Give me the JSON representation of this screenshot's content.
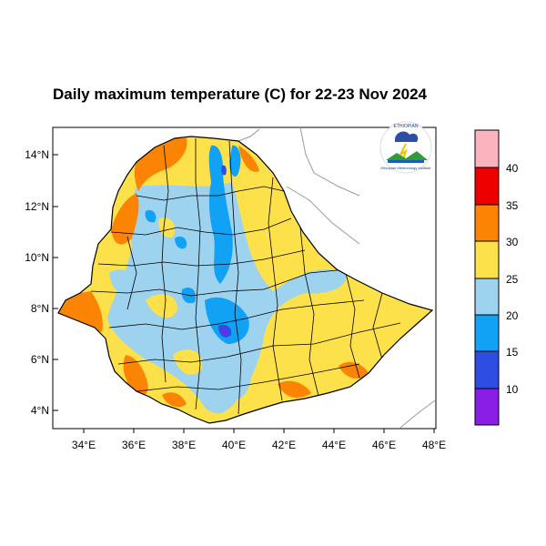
{
  "title": "Daily maximum temperature (C) for 22-23 Nov 2024",
  "map": {
    "lat_ticks": [
      "14°N",
      "12°N",
      "10°N",
      "8°N",
      "6°N",
      "4°N"
    ],
    "lon_ticks": [
      "34°E",
      "36°E",
      "38°E",
      "40°E",
      "42°E",
      "44°E",
      "46°E",
      "48°E"
    ],
    "extent": {
      "lon": [
        33,
        48.2
      ],
      "lat": [
        3.2,
        15.0
      ]
    },
    "region": "Ethiopia"
  },
  "colorbar": {
    "labels": [
      "40",
      "35",
      "30",
      "25",
      "20",
      "15",
      "10"
    ],
    "bins": [
      {
        "range": "<10",
        "color": "#8a1ee6"
      },
      {
        "range": "10-15",
        "color": "#2d4de3"
      },
      {
        "range": "15-20",
        "color": "#12a2f5"
      },
      {
        "range": "20-25",
        "color": "#9ed3ef"
      },
      {
        "range": "25-30",
        "color": "#fde14a"
      },
      {
        "range": "30-35",
        "color": "#fc8405"
      },
      {
        "range": "35-40",
        "color": "#ee0000"
      },
      {
        "range": ">40",
        "color": "#fbb3bd"
      }
    ]
  },
  "logo": {
    "agency": "Ethiopian Meteorology Institute",
    "icon": "cloud-rain-logo"
  }
}
